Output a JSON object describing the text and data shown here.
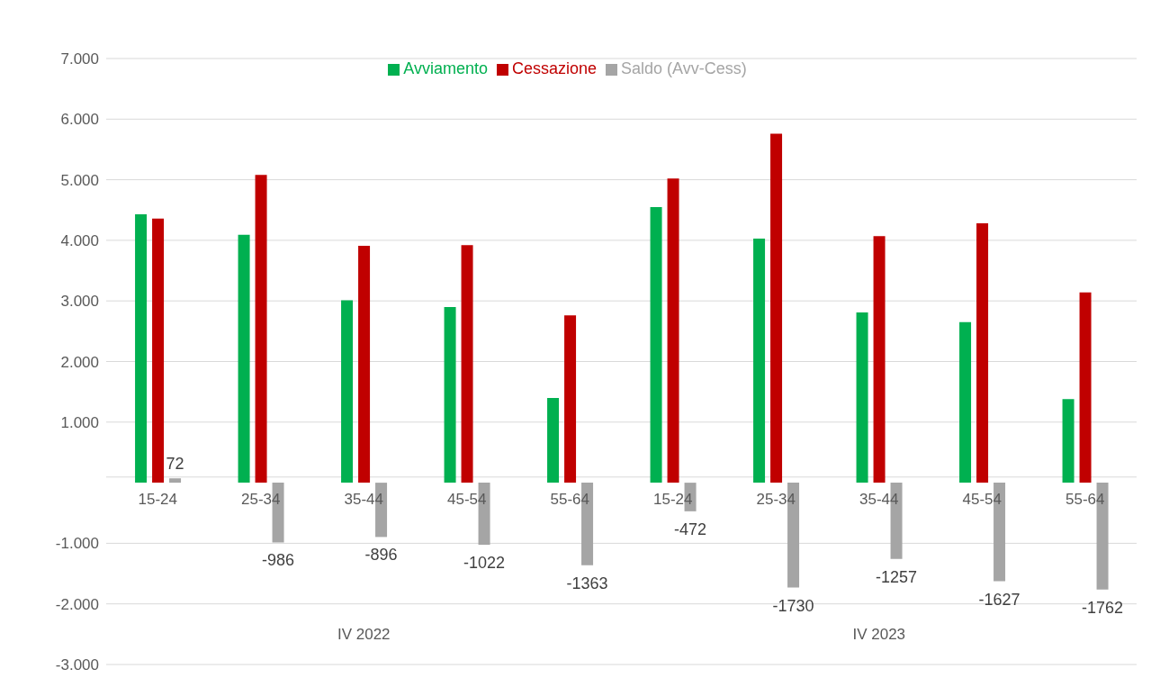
{
  "chart_data": {
    "type": "bar",
    "categories": [
      "15-24",
      "25-34",
      "35-44",
      "45-54",
      "55-64",
      "15-24",
      "25-34",
      "35-44",
      "45-54",
      "55-64"
    ],
    "series": [
      {
        "name": "Avviamento",
        "color": "#00b050",
        "values": [
          4430,
          4090,
          3010,
          2900,
          1400,
          4550,
          4030,
          2810,
          2650,
          1380
        ]
      },
      {
        "name": "Cessazione",
        "color": "#c00000",
        "values": [
          4360,
          5080,
          3910,
          3920,
          2760,
          5020,
          5760,
          4070,
          4280,
          3140
        ]
      },
      {
        "name": "Saldo (Avv-Cess)",
        "color": "#a5a5a5",
        "values": [
          72,
          -986,
          -896,
          -1022,
          -1363,
          -472,
          -1730,
          -1257,
          -1627,
          -1762
        ],
        "value_labels": [
          "72",
          "-986",
          "-896",
          "-1022",
          "-1363",
          "-472",
          "-1730",
          "-1257",
          "-1627",
          "-1762"
        ]
      }
    ],
    "annotations": [
      "IV 2022",
      "IV 2023"
    ],
    "ylim": [
      -3000,
      7000
    ],
    "yticks": [
      {
        "value": -3000,
        "label": "-3.000"
      },
      {
        "value": -2000,
        "label": "-2.000"
      },
      {
        "value": -1000,
        "label": "-1.000"
      },
      {
        "value": 1000,
        "label": "1.000"
      },
      {
        "value": 2000,
        "label": "2.000"
      },
      {
        "value": 3000,
        "label": "3.000"
      },
      {
        "value": 4000,
        "label": "4.000"
      },
      {
        "value": 5000,
        "label": "5.000"
      },
      {
        "value": 6000,
        "label": "6.000"
      },
      {
        "value": 7000,
        "label": "7.000"
      }
    ],
    "grid": "y",
    "legend": "top"
  }
}
